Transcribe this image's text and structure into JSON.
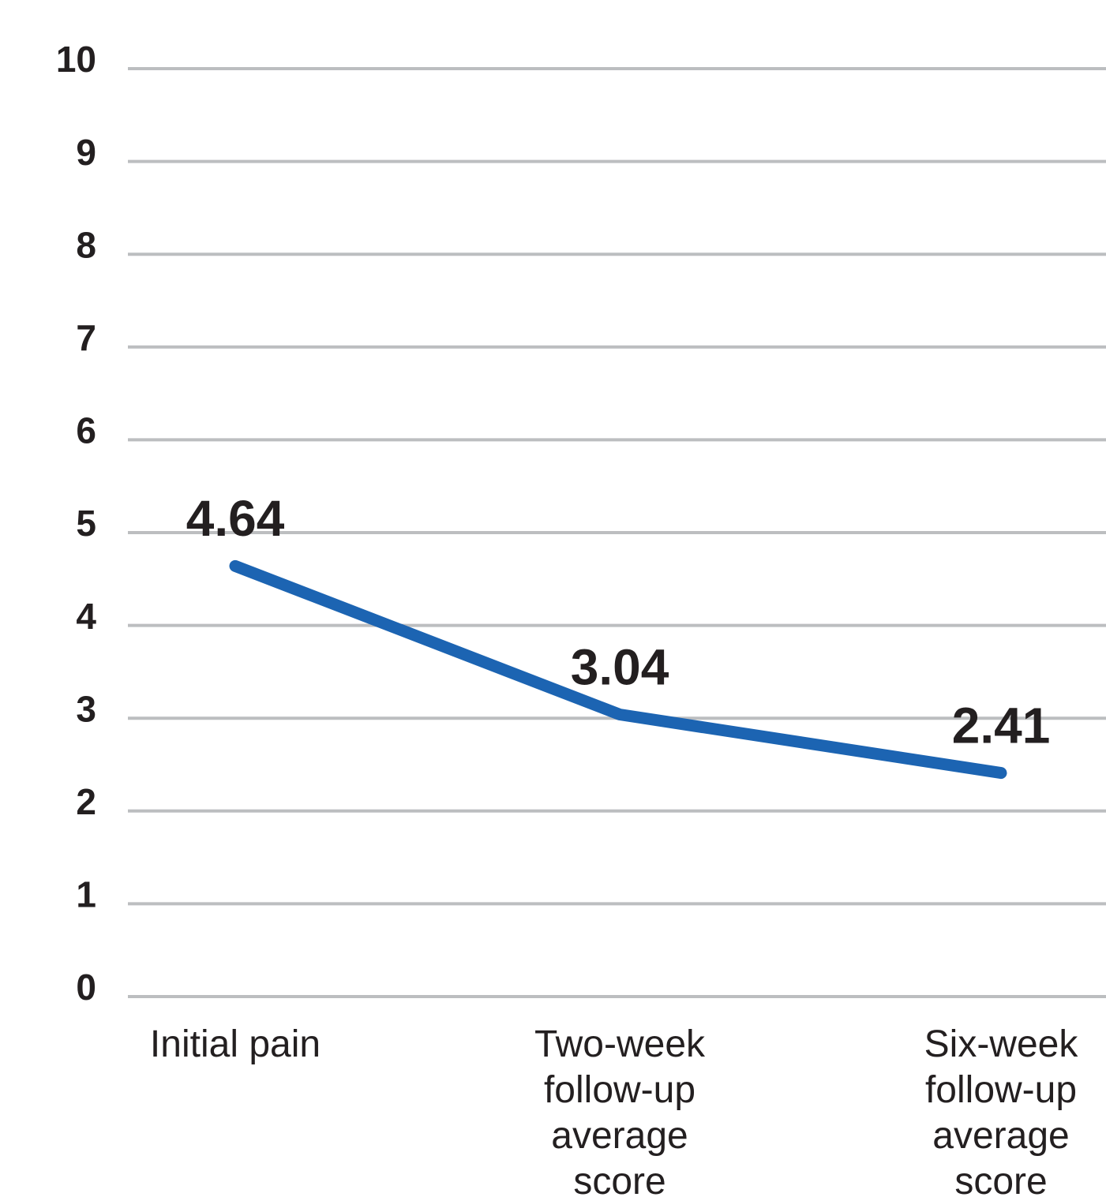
{
  "chart_data": {
    "type": "line",
    "categories": [
      "Initial pain",
      "Two-week follow-up average score",
      "Six-week follow-up average score"
    ],
    "series": [
      {
        "name": null,
        "color": "#1c64b2",
        "values": [
          4.64,
          3.04,
          2.41
        ]
      }
    ],
    "ylim": [
      0,
      10
    ],
    "yticks": [
      0,
      1,
      2,
      3,
      4,
      5,
      6,
      7,
      8,
      9,
      10
    ],
    "grid": true
  }
}
